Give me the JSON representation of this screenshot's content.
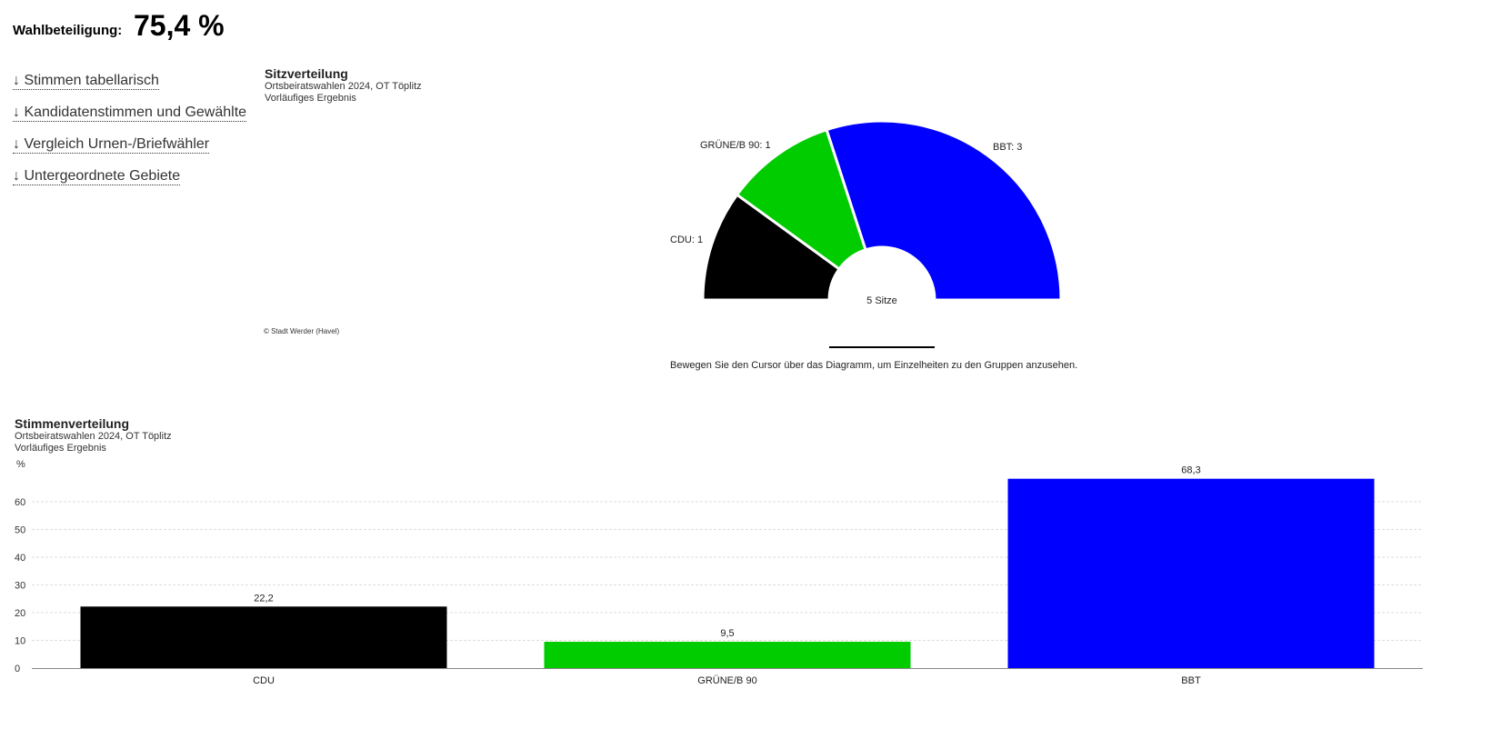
{
  "turnout": {
    "label": "Wahlbeteiligung:",
    "value": "75,4 %"
  },
  "links": [
    "↓ Stimmen tabellarisch",
    "↓ Kandidatenstimmen und Gewählte",
    "↓ Vergleich Urnen-/Briefwähler",
    "↓ Untergeordnete Gebiete"
  ],
  "seats": {
    "title": "Sitzverteilung",
    "subtitle1": "Ortsbeiratswahlen 2024, OT Töplitz",
    "subtitle2": "Vorläufiges Ergebnis",
    "copyright": "© Stadt Werder (Havel)",
    "center_label": "5 Sitze",
    "hint": "Bewegen Sie den Cursor über das Diagramm, um Einzelheiten zu den Gruppen anzusehen."
  },
  "votes": {
    "title": "Stimmenverteilung",
    "subtitle1": "Ortsbeiratswahlen 2024, OT Töplitz",
    "subtitle2": "Vorläufiges Ergebnis"
  },
  "chart_data": [
    {
      "type": "pie",
      "title": "Sitzverteilung",
      "variant": "half-donut",
      "categories": [
        "CDU",
        "GRÜNE/B 90",
        "BBT"
      ],
      "values": [
        1,
        1,
        3
      ],
      "labels": [
        "CDU: 1",
        "GRÜNE/B 90: 1",
        "BBT: 3"
      ],
      "colors": [
        "#000000",
        "#00cc00",
        "#0000ff"
      ]
    },
    {
      "type": "bar",
      "title": "Stimmenverteilung",
      "categories": [
        "CDU",
        "GRÜNE/B 90",
        "BBT"
      ],
      "values": [
        22.2,
        9.5,
        68.3
      ],
      "value_labels": [
        "22,2",
        "9,5",
        "68,3"
      ],
      "colors": [
        "#000000",
        "#00cc00",
        "#0000ff"
      ],
      "ylabel": "%",
      "yticks": [
        0,
        10,
        20,
        30,
        40,
        50,
        60
      ],
      "ylim": [
        0,
        60
      ],
      "grid": true
    }
  ]
}
